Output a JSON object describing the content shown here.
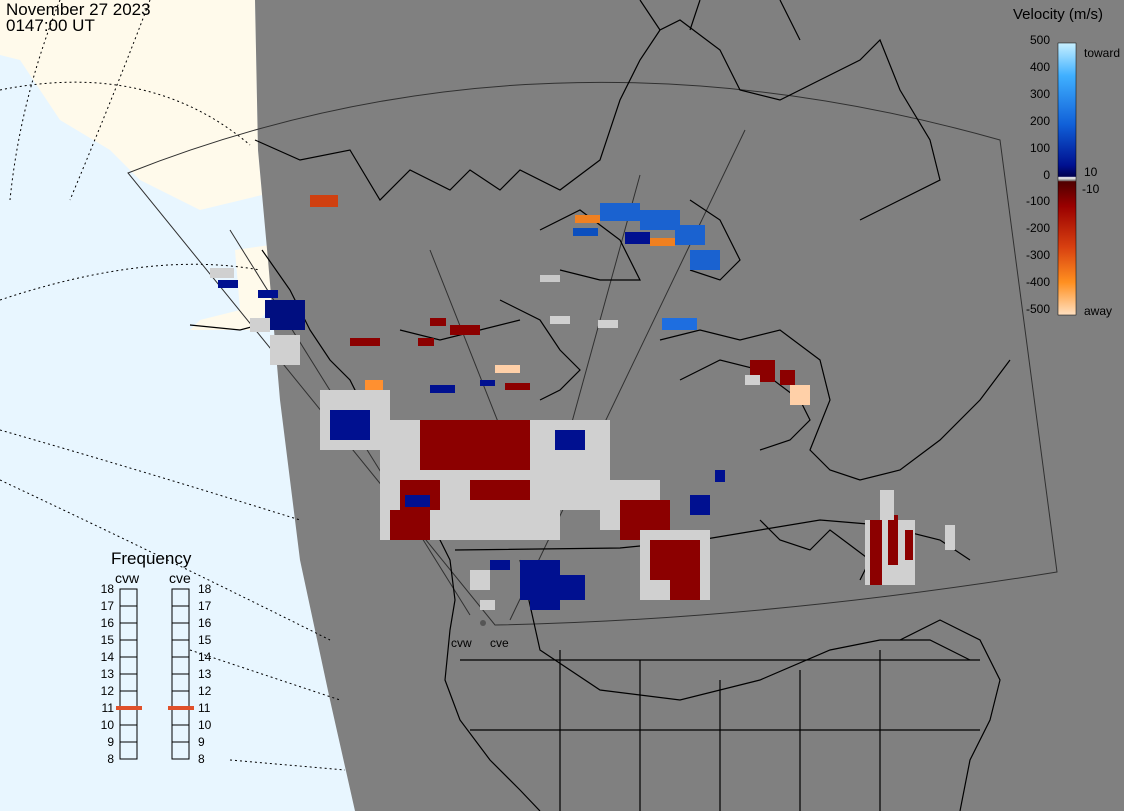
{
  "header": {
    "date": "November 27 2023",
    "time": "0147:00 UT"
  },
  "velocity_scale": {
    "title": "Velocity (m/s)",
    "ticks": [
      "500",
      "400",
      "300",
      "200",
      "100",
      "0",
      "-100",
      "-200",
      "-300",
      "-400",
      "-500"
    ],
    "small_ticks": [
      "10",
      "-10"
    ],
    "toward_label": "toward",
    "away_label": "away",
    "colors": {
      "toward_light": "#b8e4ff",
      "toward_mid": "#1e7fe6",
      "toward_dark": "#000c8c",
      "zero": "#c8c8c8",
      "away_dark": "#8c0000",
      "away_mid": "#e05000",
      "away_light": "#ffd8a8"
    }
  },
  "frequency": {
    "title": "Frequency",
    "radars": [
      {
        "name": "cvw",
        "value_mhz": 11
      },
      {
        "name": "cve",
        "value_mhz": 11
      }
    ],
    "ticks": [
      "18",
      "17",
      "16",
      "15",
      "14",
      "13",
      "12",
      "11",
      "10",
      "9",
      "8"
    ],
    "marker_color": "#e0502a"
  },
  "sites": [
    {
      "label": "cvw"
    },
    {
      "label": "cve"
    }
  ],
  "map_colors": {
    "ocean": "#e8f6ff",
    "daylight_land": "#fffaeb",
    "night": "#808080",
    "coast": "#000000"
  }
}
